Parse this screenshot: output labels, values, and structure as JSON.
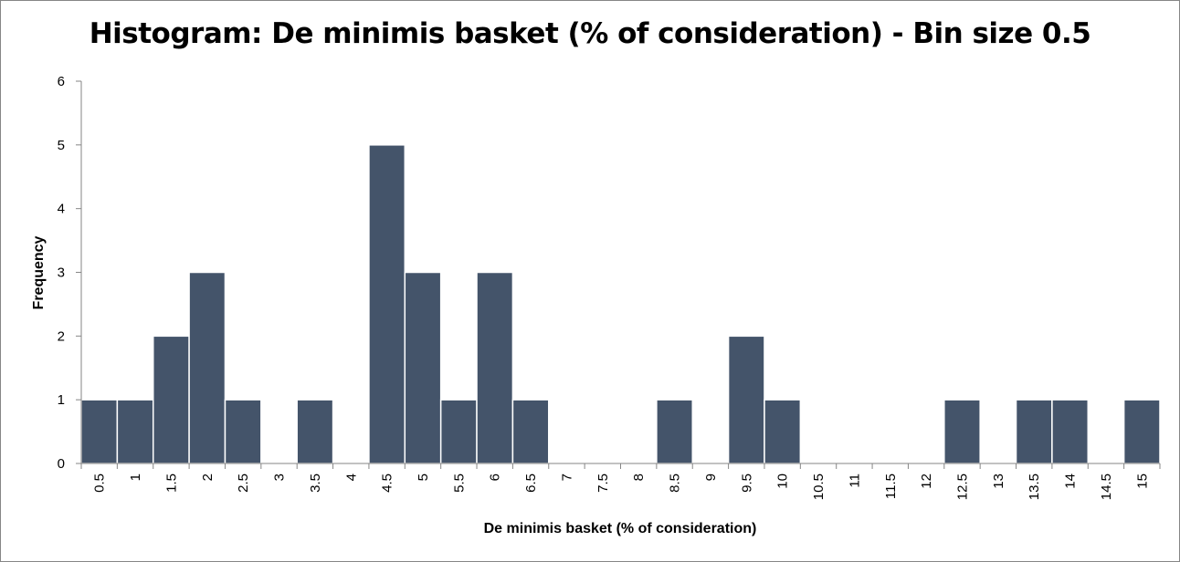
{
  "chart_data": {
    "type": "bar",
    "title": "Histogram: De minimis basket (% of consideration) - Bin size 0.5",
    "xlabel": "De minimis basket (% of consideration)",
    "ylabel": "Frequency",
    "categories": [
      "0.5",
      "1",
      "1.5",
      "2",
      "2.5",
      "3",
      "3.5",
      "4",
      "4.5",
      "5",
      "5.5",
      "6",
      "6.5",
      "7",
      "7.5",
      "8",
      "8.5",
      "9",
      "9.5",
      "10",
      "10.5",
      "11",
      "11.5",
      "12",
      "12.5",
      "13",
      "13.5",
      "14",
      "14.5",
      "15"
    ],
    "values": [
      1,
      1,
      2,
      3,
      1,
      0,
      1,
      0,
      5,
      3,
      1,
      3,
      1,
      0,
      0,
      0,
      1,
      0,
      2,
      1,
      0,
      0,
      0,
      0,
      1,
      0,
      1,
      1,
      0,
      1
    ],
    "ylim": [
      0,
      6
    ],
    "yticks": [
      0,
      1,
      2,
      3,
      4,
      5,
      6
    ],
    "grid": false,
    "legend": "none",
    "colors": {
      "bar": "#44546A",
      "bar_border": "#ffffff",
      "axis": "#868686"
    }
  }
}
